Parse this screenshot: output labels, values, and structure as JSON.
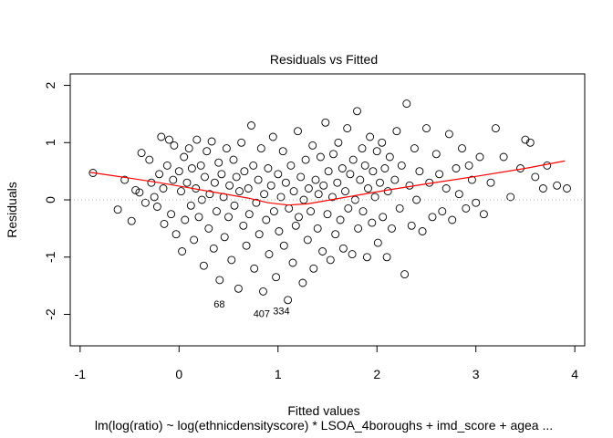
{
  "chart_data": {
    "type": "scatter",
    "title": "Residuals vs Fitted",
    "xlabel": "Fitted values",
    "ylabel": "Residuals",
    "subtitle": "lm(log(ratio) ~ log(ethnicdensityscore) * LSOA_4boroughs + imd_score + agea ...",
    "xlim": [
      -1.1,
      4.1
    ],
    "ylim": [
      -2.55,
      2.2
    ],
    "x_ticks": [
      -1,
      0,
      1,
      2,
      3,
      4
    ],
    "x_tick_labels": [
      "-1",
      "0",
      "1",
      "2",
      "3",
      "4"
    ],
    "y_ticks": [
      -2,
      -1,
      0,
      1,
      2
    ],
    "y_tick_labels": [
      "-2",
      "-1",
      "0",
      "1",
      "2"
    ],
    "reference_line": {
      "y": 0,
      "style": "dotted",
      "color": "#aaaaaa"
    },
    "smooth_color": "#ff0000",
    "point_color": "#000000",
    "smooth": {
      "x": [
        -0.9,
        -0.5,
        -0.2,
        0.1,
        0.4,
        0.7,
        0.9,
        1.1,
        1.3,
        1.5,
        1.8,
        2.1,
        2.5,
        3.0,
        3.5,
        3.9
      ],
      "y": [
        0.48,
        0.38,
        0.3,
        0.21,
        0.12,
        0.03,
        -0.05,
        -0.09,
        -0.07,
        -0.01,
        0.08,
        0.17,
        0.28,
        0.41,
        0.55,
        0.68
      ]
    },
    "labeled_points": [
      {
        "label": "68",
        "x": 0.35,
        "y": -1.88
      },
      {
        "label": "407",
        "x": 0.75,
        "y": -2.05
      },
      {
        "label": "334",
        "x": 0.95,
        "y": -2.0
      }
    ],
    "series": [
      {
        "points": [
          [
            -0.87,
            0.47
          ],
          [
            -0.62,
            -0.17
          ],
          [
            -0.55,
            0.35
          ],
          [
            -0.48,
            -0.37
          ],
          [
            -0.44,
            0.17
          ],
          [
            -0.4,
            0.13
          ],
          [
            -0.38,
            0.82
          ],
          [
            -0.34,
            -0.05
          ],
          [
            -0.3,
            0.7
          ],
          [
            -0.28,
            0.3
          ],
          [
            -0.25,
            0.05
          ],
          [
            -0.22,
            -0.12
          ],
          [
            -0.2,
            0.45
          ],
          [
            -0.18,
            1.1
          ],
          [
            -0.16,
            0.2
          ],
          [
            -0.15,
            -0.42
          ],
          [
            -0.12,
            0.6
          ],
          [
            -0.1,
            1.05
          ],
          [
            -0.08,
            -0.25
          ],
          [
            -0.06,
            0.35
          ],
          [
            -0.05,
            0.95
          ],
          [
            -0.03,
            -0.6
          ],
          [
            0.0,
            0.5
          ],
          [
            0.02,
            0.15
          ],
          [
            0.03,
            -0.9
          ],
          [
            0.05,
            0.75
          ],
          [
            0.06,
            -0.35
          ],
          [
            0.08,
            0.3
          ],
          [
            0.1,
            0.9
          ],
          [
            0.12,
            -0.1
          ],
          [
            0.13,
            0.55
          ],
          [
            0.15,
            -0.7
          ],
          [
            0.17,
            0.2
          ],
          [
            0.18,
            1.05
          ],
          [
            0.2,
            -0.3
          ],
          [
            0.22,
            0.6
          ],
          [
            0.23,
            0.0
          ],
          [
            0.25,
            -1.15
          ],
          [
            0.26,
            0.4
          ],
          [
            0.28,
            0.85
          ],
          [
            0.3,
            -0.5
          ],
          [
            0.31,
            0.1
          ],
          [
            0.33,
            1.02
          ],
          [
            0.35,
            -0.85
          ],
          [
            0.36,
            0.3
          ],
          [
            0.38,
            -0.2
          ],
          [
            0.4,
            0.65
          ],
          [
            0.41,
            -1.4
          ],
          [
            0.43,
            0.45
          ],
          [
            0.45,
            0.05
          ],
          [
            0.46,
            -0.65
          ],
          [
            0.48,
            0.9
          ],
          [
            0.5,
            -0.3
          ],
          [
            0.51,
            0.25
          ],
          [
            0.53,
            -1.05
          ],
          [
            0.55,
            0.7
          ],
          [
            0.56,
            -0.1
          ],
          [
            0.58,
            0.4
          ],
          [
            0.6,
            -1.55
          ],
          [
            0.61,
            0.15
          ],
          [
            0.63,
            1.0
          ],
          [
            0.65,
            -0.45
          ],
          [
            0.66,
            0.5
          ],
          [
            0.68,
            -0.8
          ],
          [
            0.7,
            0.2
          ],
          [
            0.71,
            -0.25
          ],
          [
            0.73,
            1.3
          ],
          [
            0.75,
            0.6
          ],
          [
            0.76,
            -1.2
          ],
          [
            0.78,
            -0.05
          ],
          [
            0.8,
            0.35
          ],
          [
            0.81,
            -0.6
          ],
          [
            0.83,
            0.9
          ],
          [
            0.85,
            -1.6
          ],
          [
            0.86,
            0.1
          ],
          [
            0.88,
            -0.35
          ],
          [
            0.9,
            0.55
          ],
          [
            0.91,
            -0.95
          ],
          [
            0.93,
            0.25
          ],
          [
            0.95,
            1.1
          ],
          [
            0.96,
            -0.2
          ],
          [
            0.98,
            -1.35
          ],
          [
            1.0,
            0.45
          ],
          [
            1.01,
            -0.55
          ],
          [
            1.03,
            0.05
          ],
          [
            1.05,
            0.85
          ],
          [
            1.06,
            -0.8
          ],
          [
            1.08,
            0.3
          ],
          [
            1.1,
            -1.75
          ],
          [
            1.11,
            -0.15
          ],
          [
            1.13,
            0.6
          ],
          [
            1.15,
            -1.1
          ],
          [
            1.16,
            0.15
          ],
          [
            1.18,
            -0.45
          ],
          [
            1.2,
            1.2
          ],
          [
            1.21,
            -0.3
          ],
          [
            1.23,
            0.4
          ],
          [
            1.25,
            -1.45
          ],
          [
            1.26,
            0.0
          ],
          [
            1.28,
            0.7
          ],
          [
            1.3,
            -0.7
          ],
          [
            1.31,
            0.2
          ],
          [
            1.33,
            -0.2
          ],
          [
            1.35,
            0.95
          ],
          [
            1.36,
            -1.2
          ],
          [
            1.38,
            0.35
          ],
          [
            1.4,
            -0.5
          ],
          [
            1.41,
            0.1
          ],
          [
            1.43,
            0.75
          ],
          [
            1.45,
            -0.9
          ],
          [
            1.46,
            0.25
          ],
          [
            1.48,
            1.35
          ],
          [
            1.5,
            -0.25
          ],
          [
            1.51,
            0.5
          ],
          [
            1.53,
            -1.05
          ],
          [
            1.55,
            0.05
          ],
          [
            1.56,
            0.8
          ],
          [
            1.58,
            -0.6
          ],
          [
            1.6,
            0.3
          ],
          [
            1.61,
            1.0
          ],
          [
            1.63,
            -0.35
          ],
          [
            1.65,
            0.55
          ],
          [
            1.66,
            -0.85
          ],
          [
            1.68,
            0.15
          ],
          [
            1.7,
            1.25
          ],
          [
            1.71,
            -0.15
          ],
          [
            1.73,
            0.45
          ],
          [
            1.75,
            -0.95
          ],
          [
            1.76,
            0.7
          ],
          [
            1.78,
            0.0
          ],
          [
            1.8,
            1.55
          ],
          [
            1.81,
            -0.5
          ],
          [
            1.83,
            0.35
          ],
          [
            1.85,
            0.9
          ],
          [
            1.86,
            -0.2
          ],
          [
            1.88,
            0.6
          ],
          [
            1.9,
            -1.0
          ],
          [
            1.91,
            0.2
          ],
          [
            1.93,
            1.1
          ],
          [
            1.95,
            -0.4
          ],
          [
            1.96,
            0.5
          ],
          [
            1.98,
            0.05
          ],
          [
            2.0,
            0.85
          ],
          [
            2.01,
            -0.75
          ],
          [
            2.03,
            0.3
          ],
          [
            2.05,
            1.0
          ],
          [
            2.06,
            -0.3
          ],
          [
            2.08,
            0.55
          ],
          [
            2.1,
            -1.0
          ],
          [
            2.11,
            0.15
          ],
          [
            2.13,
            0.75
          ],
          [
            2.15,
            -0.5
          ],
          [
            2.18,
            0.35
          ],
          [
            2.2,
            1.2
          ],
          [
            2.23,
            -0.15
          ],
          [
            2.25,
            0.6
          ],
          [
            2.28,
            -1.3
          ],
          [
            2.3,
            1.68
          ],
          [
            2.33,
            0.25
          ],
          [
            2.35,
            -0.45
          ],
          [
            2.38,
            0.9
          ],
          [
            2.4,
            0.0
          ],
          [
            2.43,
            0.5
          ],
          [
            2.46,
            -0.55
          ],
          [
            2.5,
            1.25
          ],
          [
            2.53,
            0.3
          ],
          [
            2.56,
            -0.3
          ],
          [
            2.6,
            0.8
          ],
          [
            2.63,
            0.45
          ],
          [
            2.66,
            -0.2
          ],
          [
            2.7,
            0.2
          ],
          [
            2.73,
            1.15
          ],
          [
            2.76,
            -0.35
          ],
          [
            2.8,
            0.55
          ],
          [
            2.83,
            0.1
          ],
          [
            2.86,
            0.9
          ],
          [
            2.9,
            -0.15
          ],
          [
            2.93,
            0.6
          ],
          [
            2.96,
            0.35
          ],
          [
            3.0,
            -0.05
          ],
          [
            3.04,
            0.75
          ],
          [
            3.08,
            -0.25
          ],
          [
            3.15,
            0.3
          ],
          [
            3.2,
            1.25
          ],
          [
            3.28,
            0.75
          ],
          [
            3.35,
            0.05
          ],
          [
            3.45,
            0.55
          ],
          [
            3.5,
            1.05
          ],
          [
            3.55,
            1.0
          ],
          [
            3.6,
            0.4
          ],
          [
            3.68,
            0.2
          ],
          [
            3.72,
            0.6
          ],
          [
            3.82,
            0.25
          ],
          [
            3.92,
            0.2
          ]
        ]
      }
    ]
  }
}
